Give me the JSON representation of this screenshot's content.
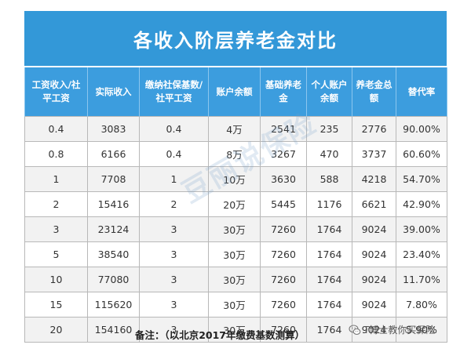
{
  "title": "各收入阶层养老金对比",
  "table": {
    "headers": [
      "工资收入/社平工资",
      "实际收入",
      "缴纳社保基数/社平工资",
      "账户余额",
      "基础养老金",
      "个人账户余额",
      "养老金总额",
      "替代率"
    ],
    "rows": [
      [
        "0.4",
        "3083",
        "0.4",
        "4万",
        "2541",
        "235",
        "2776",
        "90.00%"
      ],
      [
        "0.8",
        "6166",
        "0.4",
        "8万",
        "3267",
        "470",
        "3737",
        "60.60%"
      ],
      [
        "1",
        "7708",
        "1",
        "10万",
        "3630",
        "588",
        "4218",
        "54.70%"
      ],
      [
        "2",
        "15416",
        "2",
        "20万",
        "5445",
        "1176",
        "6621",
        "42.90%"
      ],
      [
        "3",
        "23124",
        "3",
        "30万",
        "7260",
        "1764",
        "9024",
        "39.00%"
      ],
      [
        "5",
        "38540",
        "3",
        "30万",
        "7260",
        "1764",
        "9024",
        "23.40%"
      ],
      [
        "10",
        "77080",
        "3",
        "30万",
        "7260",
        "1764",
        "9024",
        "11.70%"
      ],
      [
        "15",
        "115620",
        "3",
        "30万",
        "7260",
        "1764",
        "9024",
        "7.80%"
      ],
      [
        "20",
        "154160",
        "3",
        "30万",
        "7260",
        "1764",
        "9024",
        "5.90%"
      ]
    ]
  },
  "note": "备注：（以北京2017年缴费基数测算）",
  "watermark": "豆丽说保险",
  "brand": {
    "label": "T博士教你买保险",
    "icon": "wechat-icon"
  },
  "colors": {
    "title_bg": "#3398d8",
    "header_bg": "#3c9dde",
    "row_stripe": "#f2f2f2"
  }
}
